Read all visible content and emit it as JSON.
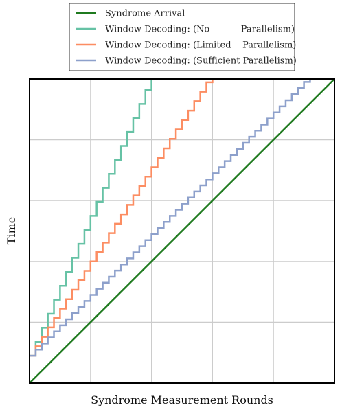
{
  "chart_data": {
    "type": "line",
    "title": "",
    "xlabel": "Syndrome Measurement Rounds",
    "ylabel": "Time",
    "xlim": [
      0,
      5
    ],
    "ylim": [
      0,
      5
    ],
    "grid": true,
    "tick_labels_shown": false,
    "legend_placement": "top-center, outside plot",
    "series": [
      {
        "name": "Syndrome Arrival",
        "color": "#1f7a1f",
        "style": "line",
        "points": [
          [
            0,
            0
          ],
          [
            5,
            5
          ]
        ]
      },
      {
        "name": "Window Decoding: (No           Parallelism)",
        "color": "#66c2a5",
        "style": "step",
        "step_width": 0.1,
        "start_y": 0.45,
        "step_height": 0.23,
        "y_cap": 5
      },
      {
        "name": "Window Decoding: (Limited    Parallelism)",
        "color": "#fc8d62",
        "style": "step",
        "step_width": 0.1,
        "start_y": 0.45,
        "step_height": 0.155,
        "y_cap": 5
      },
      {
        "name": "Window Decoding: (Sufficient Parallelism)",
        "color": "#8da0cb",
        "style": "step",
        "step_width": 0.1,
        "start_y": 0.45,
        "step_height": 0.1,
        "y_cap": 5
      }
    ]
  }
}
